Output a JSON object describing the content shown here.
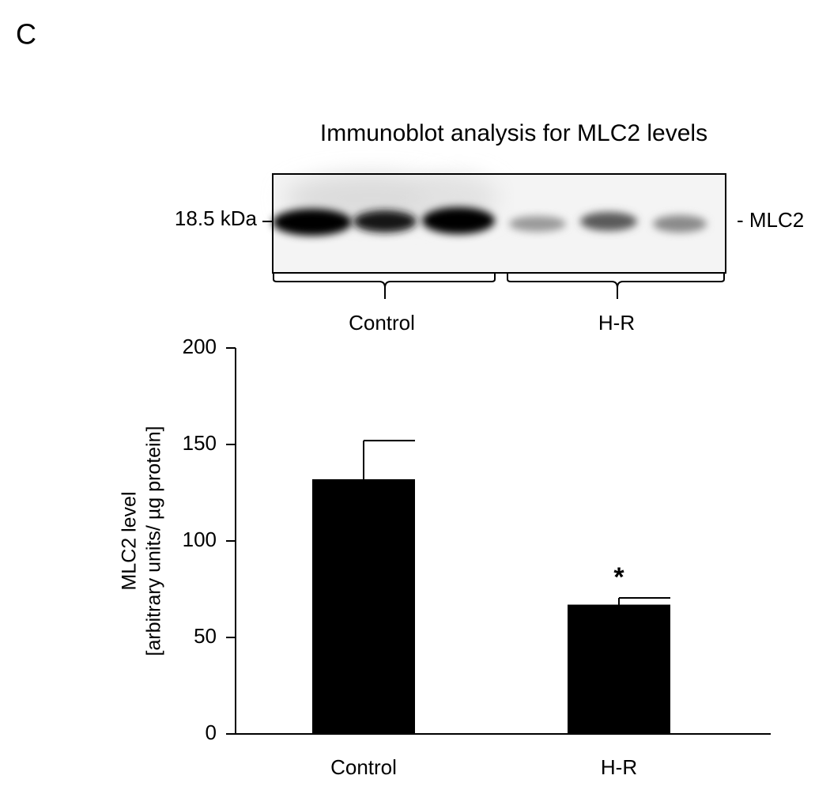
{
  "chart_data": {
    "type": "bar",
    "panel_label": "C",
    "blot_title": "Immunoblot analysis for MLC2 levels",
    "blot_marker": "18.5 kDa",
    "blot_band": "- MLC2",
    "blot_groups": [
      "Control",
      "H-R"
    ],
    "y_label_lines": [
      "MLC2 level",
      "[arbitrary units/  µg protein]"
    ],
    "categories": [
      "Control",
      "H-R"
    ],
    "values": [
      132,
      67
    ],
    "errors": [
      20,
      3.5
    ],
    "significance_labels": [
      null,
      "*"
    ],
    "color": "#000000",
    "ylim": [
      0,
      200
    ],
    "yticks": [
      0,
      50,
      100,
      150,
      200
    ],
    "grid": false
  }
}
